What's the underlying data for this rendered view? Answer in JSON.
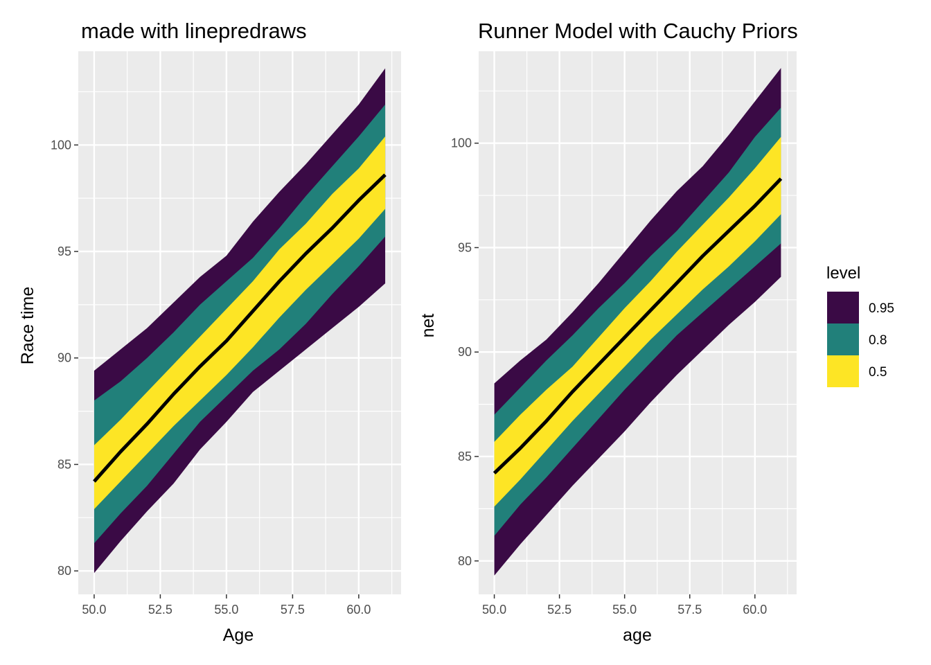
{
  "chart_data": [
    {
      "type": "area",
      "title": "made with linepredraws",
      "xlabel": "Age",
      "ylabel": "Race time",
      "xlim": [
        49.4,
        61.6
      ],
      "ylim": [
        78.9,
        104.4
      ],
      "xticks": [
        50.0,
        52.5,
        55.0,
        57.5,
        60.0
      ],
      "xtick_labels": [
        "50.0",
        "52.5",
        "55.0",
        "57.5",
        "60.0"
      ],
      "yticks": [
        80,
        85,
        90,
        95,
        100
      ],
      "ytick_labels": [
        "80",
        "85",
        "90",
        "95",
        "100"
      ],
      "grid": true,
      "x": [
        50,
        51,
        52,
        53,
        54,
        55,
        56,
        57,
        58,
        59,
        60,
        61
      ],
      "median": [
        84.2,
        85.6,
        86.9,
        88.3,
        89.6,
        90.8,
        92.2,
        93.6,
        94.9,
        96.1,
        97.4,
        98.6
      ],
      "bands": [
        {
          "level": "0.95",
          "lower": [
            79.9,
            81.4,
            82.8,
            84.1,
            85.7,
            87.0,
            88.4,
            89.4,
            90.4,
            91.4,
            92.4,
            93.5
          ],
          "upper": [
            89.4,
            90.4,
            91.4,
            92.6,
            93.8,
            94.8,
            96.4,
            97.8,
            99.1,
            100.5,
            101.9,
            103.6
          ]
        },
        {
          "level": "0.8",
          "lower": [
            81.3,
            82.7,
            84.0,
            85.5,
            87.0,
            88.2,
            89.4,
            90.4,
            91.6,
            93.0,
            94.3,
            95.7
          ],
          "upper": [
            88.0,
            88.9,
            90.0,
            91.2,
            92.5,
            93.6,
            94.7,
            96.1,
            97.6,
            99.0,
            100.4,
            101.9
          ]
        },
        {
          "level": "0.5",
          "lower": [
            82.9,
            84.2,
            85.5,
            86.8,
            88.0,
            89.2,
            90.5,
            91.9,
            93.2,
            94.4,
            95.6,
            97.0
          ],
          "upper": [
            85.9,
            87.1,
            88.4,
            89.7,
            91.0,
            92.3,
            93.6,
            95.1,
            96.3,
            97.7,
            98.9,
            100.4
          ]
        }
      ]
    },
    {
      "type": "area",
      "title": "Runner Model with Cauchy Priors",
      "xlabel": "age",
      "ylabel": "net",
      "xlim": [
        49.4,
        61.6
      ],
      "ylim": [
        78.4,
        104.4
      ],
      "xticks": [
        50.0,
        52.5,
        55.0,
        57.5,
        60.0
      ],
      "xtick_labels": [
        "50.0",
        "52.5",
        "55.0",
        "57.5",
        "60.0"
      ],
      "yticks": [
        80,
        85,
        90,
        95,
        100
      ],
      "ytick_labels": [
        "80",
        "85",
        "90",
        "95",
        "100"
      ],
      "grid": true,
      "x": [
        50,
        51,
        52,
        53,
        54,
        55,
        56,
        57,
        58,
        59,
        60,
        61
      ],
      "median": [
        84.2,
        85.4,
        86.7,
        88.1,
        89.4,
        90.7,
        92.0,
        93.3,
        94.6,
        95.8,
        97.0,
        98.3
      ],
      "bands": [
        {
          "level": "0.95",
          "lower": [
            79.3,
            80.8,
            82.2,
            83.6,
            84.9,
            86.2,
            87.6,
            88.9,
            90.1,
            91.3,
            92.4,
            93.6
          ],
          "upper": [
            88.5,
            89.6,
            90.6,
            91.9,
            93.3,
            94.8,
            96.3,
            97.7,
            98.9,
            100.4,
            102.0,
            103.6
          ]
        },
        {
          "level": "0.8",
          "lower": [
            81.2,
            82.7,
            84.0,
            85.4,
            86.8,
            88.2,
            89.5,
            90.8,
            91.9,
            93.0,
            94.1,
            95.2
          ],
          "upper": [
            87.0,
            88.3,
            89.6,
            90.8,
            92.1,
            93.3,
            94.6,
            95.8,
            97.2,
            98.6,
            100.3,
            101.7
          ]
        },
        {
          "level": "0.5",
          "lower": [
            82.6,
            83.9,
            85.3,
            86.7,
            88.0,
            89.3,
            90.6,
            91.8,
            93.0,
            94.1,
            95.3,
            96.6
          ],
          "upper": [
            85.7,
            87.0,
            88.2,
            89.3,
            90.7,
            92.1,
            93.4,
            94.8,
            96.1,
            97.4,
            98.8,
            100.3
          ]
        }
      ]
    }
  ],
  "legend": {
    "title": "level",
    "items": [
      {
        "label": "0.95",
        "color": "#3a0a45"
      },
      {
        "label": "0.8",
        "color": "#21807a"
      },
      {
        "label": "0.5",
        "color": "#fde525"
      }
    ]
  },
  "colors": {
    "panel_bg": "#ebebeb",
    "grid": "#ffffff",
    "median_line": "#000000",
    "band_0.95": "#3a0a45",
    "band_0.8": "#21807a",
    "band_0.5": "#fde525"
  }
}
